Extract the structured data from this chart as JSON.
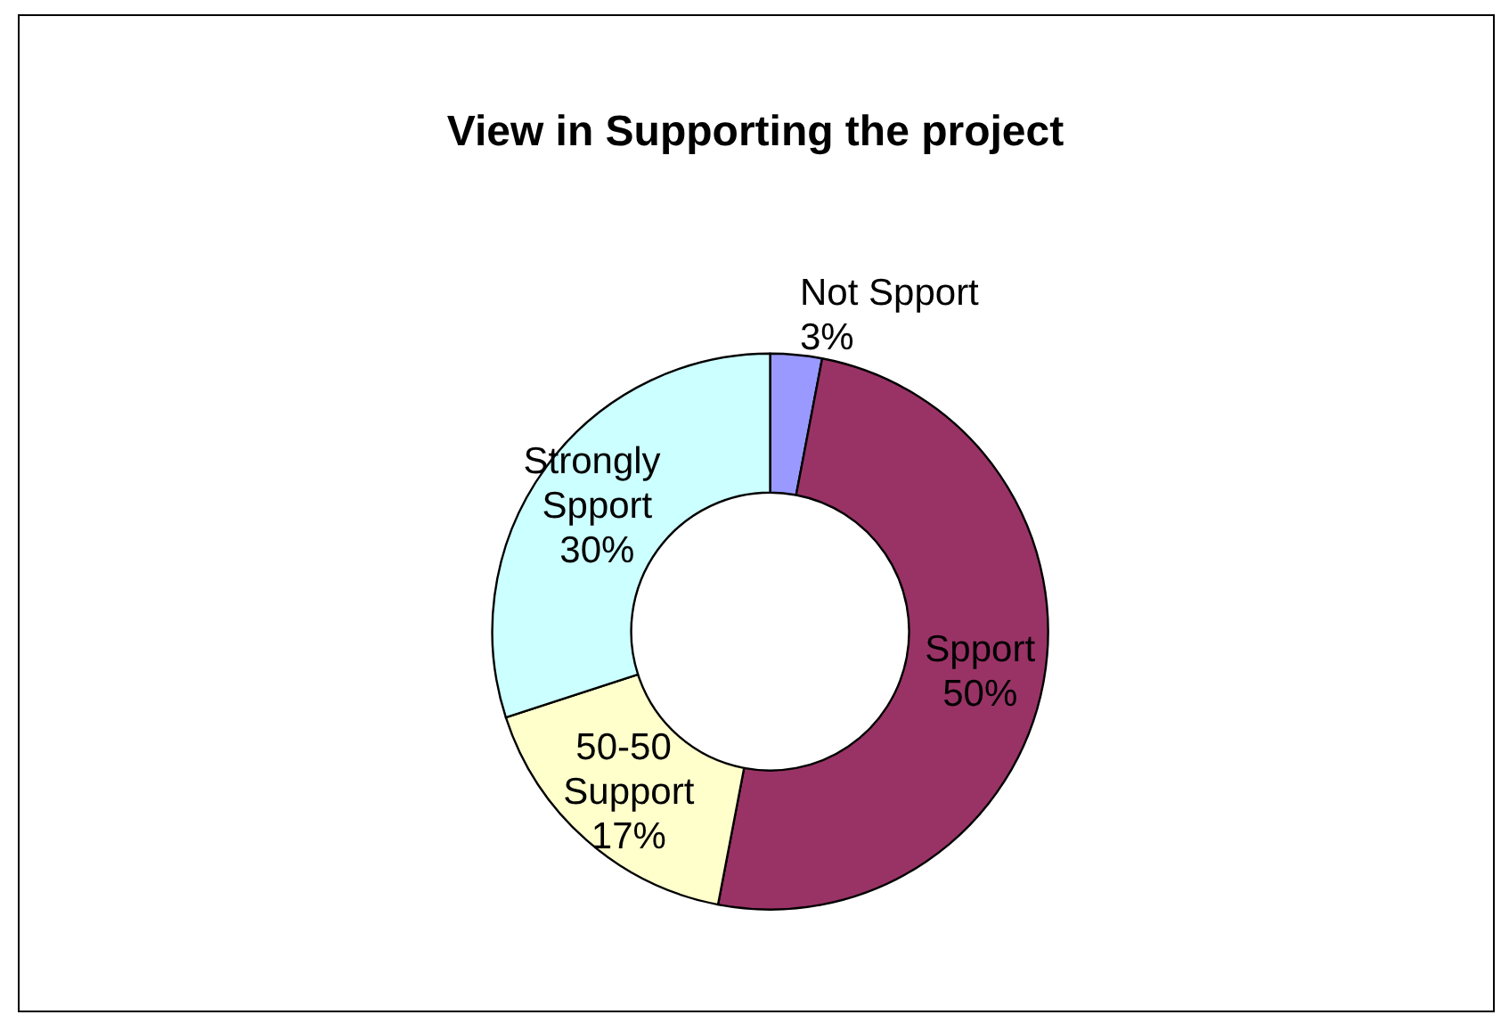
{
  "chart_data": {
    "type": "donut",
    "title": "View in Supporting the project",
    "categories": [
      "Not Spport",
      "Spport",
      "50-50 Support",
      "Strongly Spport"
    ],
    "values": [
      3,
      50,
      17,
      30
    ],
    "value_labels": [
      "3%",
      "50%",
      "17%",
      "30%"
    ],
    "colors": [
      "#9999ff",
      "#993366",
      "#ffffcc",
      "#ccffff"
    ],
    "legend": false
  }
}
